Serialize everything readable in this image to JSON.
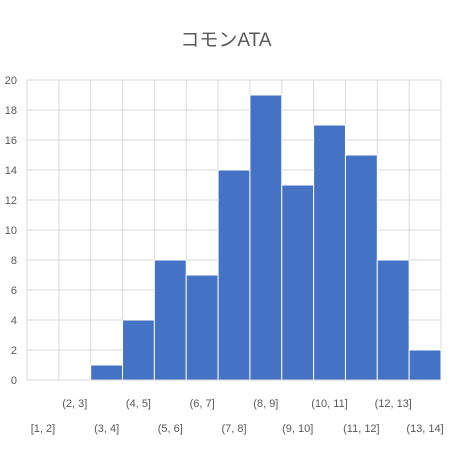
{
  "chart_data": {
    "type": "bar",
    "title": "コモンATA",
    "xlabel": "",
    "ylabel": "",
    "categories": [
      "[1, 2]",
      "(2, 3]",
      "(3, 4]",
      "(4, 5]",
      "(5, 6]",
      "(6, 7]",
      "(7, 8]",
      "(8, 9]",
      "(9, 10]",
      "(10, 11]",
      "(11, 12]",
      "(12, 13]",
      "(13, 14]"
    ],
    "values": [
      0,
      0,
      1,
      4,
      8,
      7,
      14,
      19,
      13,
      17,
      15,
      8,
      2
    ],
    "ylim": [
      0,
      20
    ],
    "yticks": [
      0,
      2,
      4,
      6,
      8,
      10,
      12,
      14,
      16,
      18,
      20
    ],
    "grid": true,
    "legend": "none",
    "colors": {
      "bar": "#4472C4",
      "bar_edge": "#ffffff",
      "grid": "#d9d9d9",
      "text": "#595959"
    }
  }
}
